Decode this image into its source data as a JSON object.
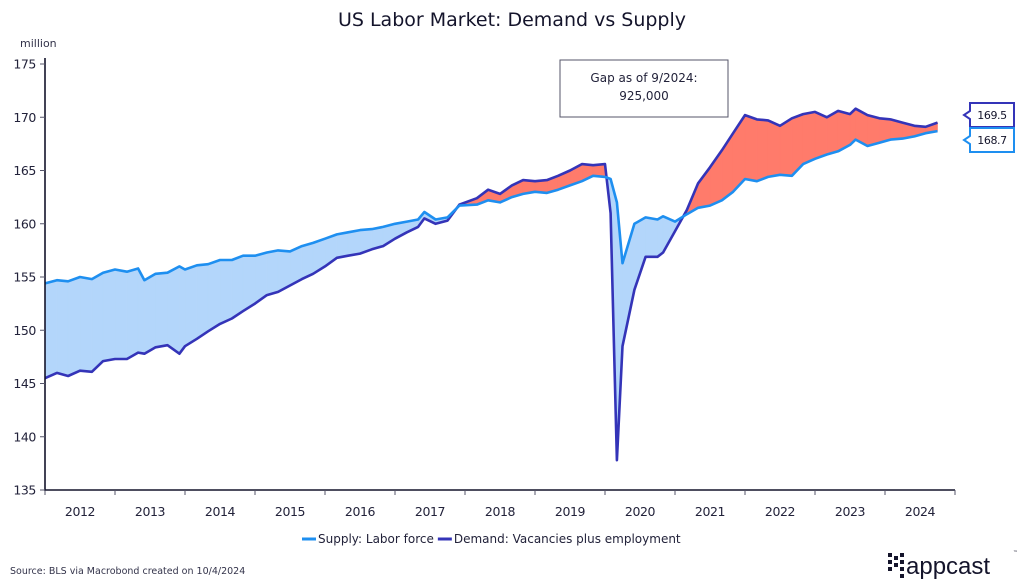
{
  "chart_data": {
    "type": "area",
    "title": "US Labor Market: Demand vs Supply",
    "ylabel": "million",
    "xlabel": "",
    "ylim": [
      135,
      175
    ],
    "yticks": [
      "135",
      "140",
      "145",
      "150",
      "155",
      "160",
      "165",
      "170",
      "175"
    ],
    "xlim": [
      2012,
      2025
    ],
    "xticks": [
      "2012",
      "2013",
      "2014",
      "2015",
      "2016",
      "2017",
      "2018",
      "2019",
      "2020",
      "2021",
      "2022",
      "2023",
      "2024"
    ],
    "grid": false,
    "legend_position": "bottom-center",
    "series": [
      {
        "name": "Supply: Labor force",
        "color": "#1e8ff0",
        "x": [
          2012.0,
          2012.17,
          2012.33,
          2012.5,
          2012.67,
          2012.83,
          2013.0,
          2013.17,
          2013.33,
          2013.42,
          2013.58,
          2013.75,
          2013.92,
          2014.0,
          2014.17,
          2014.33,
          2014.5,
          2014.67,
          2014.83,
          2015.0,
          2015.17,
          2015.33,
          2015.5,
          2015.67,
          2015.83,
          2016.0,
          2016.17,
          2016.33,
          2016.5,
          2016.67,
          2016.83,
          2017.0,
          2017.17,
          2017.33,
          2017.42,
          2017.58,
          2017.75,
          2017.92,
          2018.17,
          2018.33,
          2018.5,
          2018.67,
          2018.83,
          2019.0,
          2019.17,
          2019.33,
          2019.5,
          2019.67,
          2019.83,
          2020.0,
          2020.08,
          2020.17,
          2020.25,
          2020.42,
          2020.58,
          2020.75,
          2020.83,
          2021.0,
          2021.17,
          2021.33,
          2021.5,
          2021.67,
          2021.83,
          2022.0,
          2022.17,
          2022.33,
          2022.5,
          2022.67,
          2022.83,
          2023.0,
          2023.17,
          2023.33,
          2023.5,
          2023.58,
          2023.75,
          2023.92,
          2024.08,
          2024.25,
          2024.42,
          2024.58,
          2024.75
        ],
        "values": [
          154.4,
          154.7,
          154.6,
          155.0,
          154.8,
          155.4,
          155.7,
          155.5,
          155.8,
          154.7,
          155.3,
          155.4,
          156.0,
          155.7,
          156.1,
          156.2,
          156.6,
          156.6,
          157.0,
          157.0,
          157.3,
          157.5,
          157.4,
          157.9,
          158.2,
          158.6,
          159.0,
          159.2,
          159.4,
          159.5,
          159.7,
          160.0,
          160.2,
          160.4,
          161.1,
          160.4,
          160.6,
          161.7,
          161.8,
          162.2,
          162.0,
          162.5,
          162.8,
          163.0,
          162.9,
          163.2,
          163.6,
          164.0,
          164.5,
          164.4,
          164.2,
          162.0,
          156.3,
          160.0,
          160.6,
          160.4,
          160.7,
          160.2,
          160.9,
          161.5,
          161.7,
          162.2,
          163.0,
          164.2,
          164.0,
          164.4,
          164.6,
          164.5,
          165.6,
          166.1,
          166.5,
          166.8,
          167.4,
          167.9,
          167.3,
          167.6,
          167.9,
          168.0,
          168.2,
          168.5,
          168.7
        ]
      },
      {
        "name": "Demand: Vacancies plus employment",
        "color": "#3434b8",
        "x": [
          2012.0,
          2012.17,
          2012.33,
          2012.5,
          2012.67,
          2012.83,
          2013.0,
          2013.17,
          2013.33,
          2013.42,
          2013.58,
          2013.75,
          2013.92,
          2014.0,
          2014.17,
          2014.33,
          2014.5,
          2014.67,
          2014.83,
          2015.0,
          2015.17,
          2015.33,
          2015.5,
          2015.67,
          2015.83,
          2016.0,
          2016.17,
          2016.33,
          2016.5,
          2016.67,
          2016.83,
          2017.0,
          2017.17,
          2017.33,
          2017.42,
          2017.58,
          2017.75,
          2017.92,
          2018.17,
          2018.33,
          2018.5,
          2018.67,
          2018.83,
          2019.0,
          2019.17,
          2019.33,
          2019.5,
          2019.67,
          2019.83,
          2020.0,
          2020.08,
          2020.17,
          2020.25,
          2020.42,
          2020.58,
          2020.75,
          2020.83,
          2021.0,
          2021.17,
          2021.33,
          2021.5,
          2021.67,
          2021.83,
          2022.0,
          2022.17,
          2022.33,
          2022.5,
          2022.67,
          2022.83,
          2023.0,
          2023.17,
          2023.33,
          2023.5,
          2023.58,
          2023.75,
          2023.92,
          2024.08,
          2024.25,
          2024.42,
          2024.58,
          2024.75
        ],
        "values": [
          145.5,
          146.0,
          145.7,
          146.2,
          146.1,
          147.1,
          147.3,
          147.3,
          147.9,
          147.8,
          148.4,
          148.6,
          147.8,
          148.5,
          149.2,
          149.9,
          150.6,
          151.1,
          151.8,
          152.5,
          153.3,
          153.6,
          154.2,
          154.8,
          155.3,
          156.0,
          156.8,
          157.0,
          157.2,
          157.6,
          157.9,
          158.6,
          159.2,
          159.7,
          160.5,
          160.0,
          160.3,
          161.8,
          162.4,
          163.2,
          162.8,
          163.6,
          164.1,
          164.0,
          164.1,
          164.5,
          165.0,
          165.6,
          165.5,
          165.6,
          161.0,
          137.8,
          148.5,
          153.8,
          156.9,
          156.9,
          157.3,
          159.3,
          161.3,
          163.8,
          165.3,
          166.9,
          168.5,
          170.2,
          169.8,
          169.7,
          169.2,
          169.9,
          170.3,
          170.5,
          170.0,
          170.6,
          170.3,
          170.8,
          170.2,
          169.9,
          169.8,
          169.5,
          169.2,
          169.1,
          169.5
        ]
      }
    ],
    "fill_colors": {
      "supply_above": "#b3d6fb",
      "demand_above": "#ff7b6b"
    },
    "annotation": {
      "line1": "Gap as of 9/2024:",
      "line2": "925,000"
    },
    "end_labels": {
      "demand": "169.5",
      "supply": "168.7"
    }
  },
  "footer": {
    "source": "Source: BLS via Macrobond created on 10/4/2024",
    "logo_text": "appcast",
    "logo_tm": "™"
  }
}
